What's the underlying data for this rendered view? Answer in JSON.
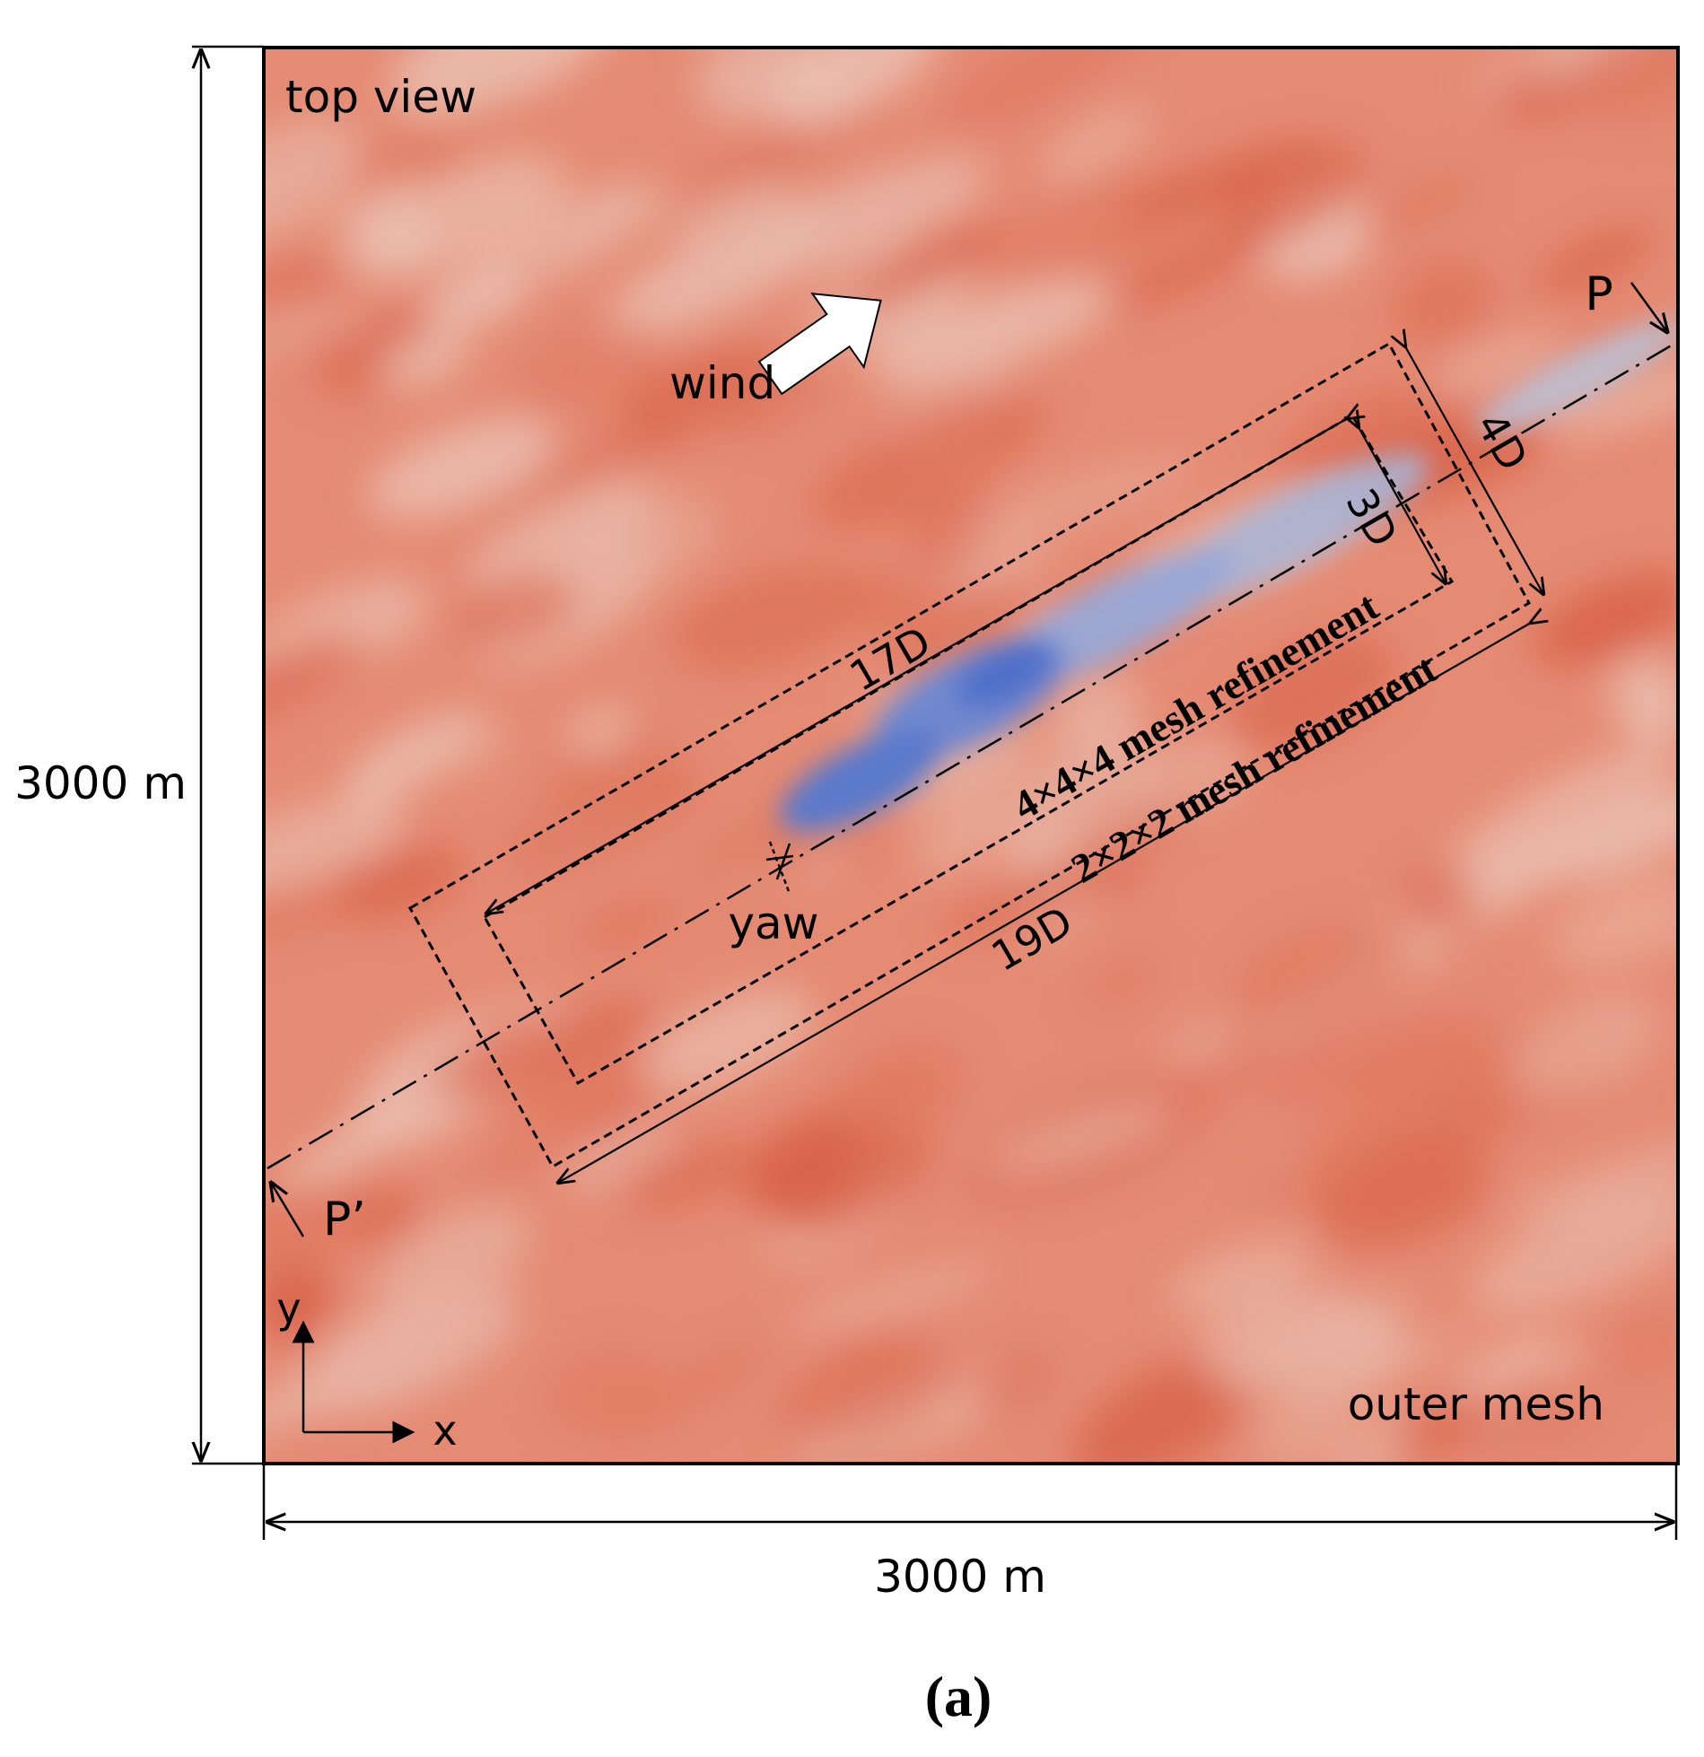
{
  "labels": {
    "top_view": "top view",
    "outer_mesh": "outer mesh",
    "wind": "wind",
    "domain_height": "3000 m",
    "domain_width": "3000 m",
    "point_p": "P",
    "point_p_prime": "P’",
    "axis_x": "x",
    "axis_y": "y",
    "yaw": "yaw",
    "dim_17d": "17D",
    "dim_19d": "19D",
    "dim_3d": "3D",
    "dim_4d": "4D",
    "inner_refinement": "4×4×4 mesh refinement",
    "outer_refinement": "2×2×2 mesh refinement",
    "caption": "(a)"
  },
  "colors": {
    "background_field": "#e58b74",
    "field_dark": "#d9644b",
    "field_light": "#e8b3a3",
    "wake_light": "#b9c2d8",
    "wake_dark": "#4f70c9",
    "lines": "#000000",
    "arrow_fill": "#ffffff"
  }
}
